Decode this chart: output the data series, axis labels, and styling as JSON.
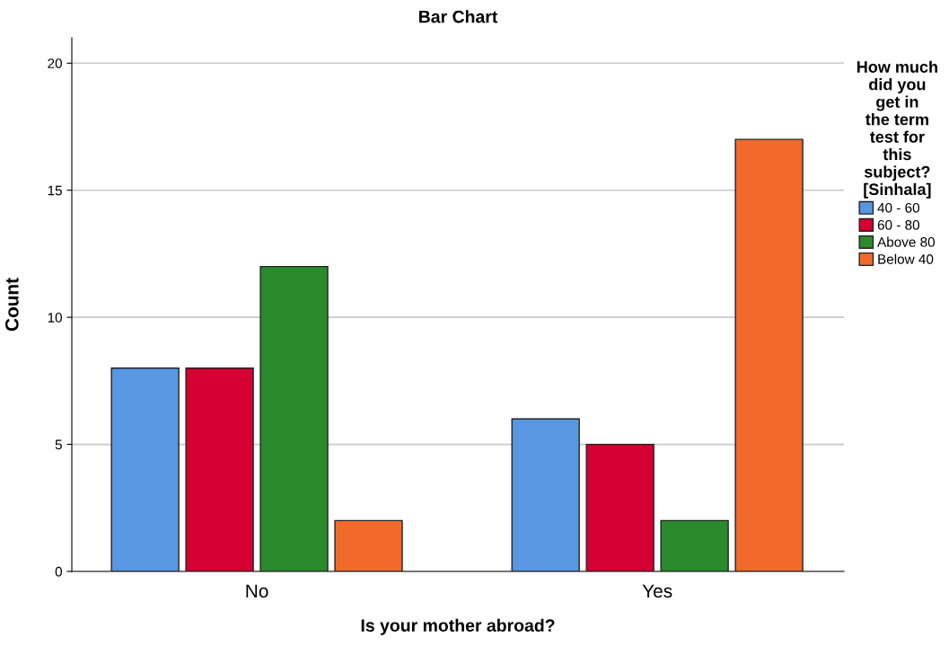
{
  "chart_data": {
    "type": "bar",
    "title": "Bar Chart",
    "xlabel": "Is your mother abroad?",
    "ylabel": "Count",
    "legend_title": "How much did you get in the term test for this subject? [Sinhala]",
    "categories": [
      "No",
      "Yes"
    ],
    "series": [
      {
        "name": "40 - 60",
        "color": "#5a97e3",
        "values": [
          8,
          6
        ]
      },
      {
        "name": "60 - 80",
        "color": "#d50032",
        "values": [
          8,
          5
        ]
      },
      {
        "name": "Above 80",
        "color": "#2b8a2b",
        "values": [
          12,
          2
        ]
      },
      {
        "name": "Below 40",
        "color": "#f26a2b",
        "values": [
          2,
          17
        ]
      }
    ],
    "ylim": [
      0,
      21
    ],
    "yticks": [
      0,
      5,
      10,
      15,
      20
    ],
    "grid": "y",
    "legend": "right"
  }
}
